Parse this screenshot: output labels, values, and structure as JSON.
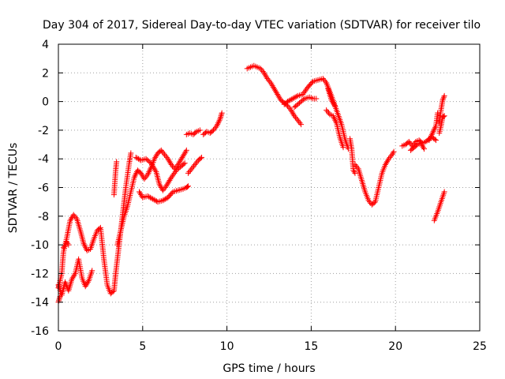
{
  "chart_data": {
    "type": "scatter",
    "title": "Day 304 of 2017, Sidereal Day-to-day VTEC variation (SDTVAR) for receiver tilo",
    "xlabel": "GPS time / hours",
    "ylabel": "SDTVAR / TECUs",
    "xlim": [
      0,
      25
    ],
    "ylim": [
      -16,
      4
    ],
    "xticks": [
      0,
      5,
      10,
      15,
      20,
      25
    ],
    "yticks": [
      -16,
      -14,
      -12,
      -10,
      -8,
      -6,
      -4,
      -2,
      0,
      2,
      4
    ],
    "grid": true,
    "marker": "+",
    "color": "#ff0000",
    "series": [
      {
        "segments": [
          [
            [
              0.0,
              -13.0
            ],
            [
              0.2,
              -12.0
            ],
            [
              0.3,
              -10.5
            ],
            [
              0.5,
              -9.5
            ],
            [
              0.7,
              -8.3
            ],
            [
              0.9,
              -7.9
            ],
            [
              1.1,
              -8.2
            ],
            [
              1.3,
              -9.0
            ],
            [
              1.5,
              -9.9
            ],
            [
              1.7,
              -10.4
            ],
            [
              1.9,
              -10.3
            ],
            [
              2.1,
              -9.6
            ],
            [
              2.3,
              -9.0
            ],
            [
              2.5,
              -8.8
            ],
            [
              2.7,
              -11.0
            ],
            [
              2.9,
              -12.8
            ],
            [
              3.1,
              -13.4
            ],
            [
              3.3,
              -13.2
            ],
            [
              3.4,
              -12.0
            ],
            [
              3.6,
              -10.0
            ],
            [
              3.8,
              -8.0
            ],
            [
              4.0,
              -6.0
            ],
            [
              4.2,
              -4.3
            ],
            [
              4.3,
              -3.6
            ]
          ],
          [
            [
              0.0,
              -12.8
            ],
            [
              0.2,
              -13.5
            ],
            [
              0.4,
              -12.6
            ],
            [
              0.6,
              -13.2
            ],
            [
              0.8,
              -12.4
            ],
            [
              1.0,
              -12.0
            ],
            [
              1.2,
              -11.0
            ],
            [
              1.4,
              -12.3
            ],
            [
              1.6,
              -12.9
            ],
            [
              1.8,
              -12.5
            ],
            [
              2.0,
              -11.8
            ]
          ],
          [
            [
              0.3,
              -10.2
            ],
            [
              0.5,
              -9.8
            ],
            [
              0.6,
              -10.0
            ]
          ],
          [
            [
              0.0,
              -14.0
            ],
            [
              0.1,
              -13.6
            ]
          ],
          [
            [
              3.3,
              -6.5
            ],
            [
              3.4,
              -4.8
            ],
            [
              3.45,
              -4.2
            ]
          ],
          [
            [
              3.5,
              -10.0
            ],
            [
              3.7,
              -9.0
            ],
            [
              3.9,
              -8.0
            ],
            [
              4.1,
              -7.3
            ],
            [
              4.3,
              -6.3
            ],
            [
              4.5,
              -5.3
            ],
            [
              4.7,
              -4.8
            ],
            [
              4.9,
              -5.0
            ],
            [
              5.1,
              -5.4
            ],
            [
              5.3,
              -5.1
            ],
            [
              5.5,
              -4.6
            ],
            [
              5.7,
              -4.0
            ],
            [
              5.9,
              -3.6
            ],
            [
              6.1,
              -3.4
            ],
            [
              6.3,
              -3.7
            ],
            [
              6.5,
              -4.0
            ],
            [
              6.7,
              -4.4
            ],
            [
              6.9,
              -4.7
            ],
            [
              7.1,
              -4.4
            ],
            [
              7.3,
              -4.0
            ],
            [
              7.5,
              -3.6
            ],
            [
              7.6,
              -3.4
            ]
          ],
          [
            [
              4.6,
              -3.9
            ],
            [
              4.9,
              -4.1
            ],
            [
              5.2,
              -4.0
            ],
            [
              5.5,
              -4.3
            ],
            [
              5.8,
              -4.9
            ],
            [
              6.0,
              -5.8
            ],
            [
              6.2,
              -6.2
            ],
            [
              6.4,
              -5.9
            ],
            [
              6.7,
              -5.3
            ],
            [
              7.0,
              -4.8
            ],
            [
              7.3,
              -4.5
            ],
            [
              7.5,
              -4.3
            ]
          ],
          [
            [
              4.8,
              -6.3
            ],
            [
              5.0,
              -6.7
            ],
            [
              5.3,
              -6.6
            ],
            [
              5.6,
              -6.8
            ],
            [
              5.9,
              -7.0
            ],
            [
              6.2,
              -6.9
            ],
            [
              6.5,
              -6.7
            ],
            [
              6.8,
              -6.3
            ],
            [
              7.1,
              -6.2
            ],
            [
              7.4,
              -6.1
            ],
            [
              7.6,
              -6.0
            ],
            [
              7.7,
              -5.9
            ]
          ],
          [
            [
              7.7,
              -5.0
            ],
            [
              7.9,
              -4.7
            ],
            [
              8.1,
              -4.4
            ],
            [
              8.3,
              -4.1
            ],
            [
              8.5,
              -3.9
            ]
          ],
          [
            [
              7.6,
              -2.3
            ],
            [
              7.8,
              -2.2
            ],
            [
              8.0,
              -2.3
            ],
            [
              8.2,
              -2.1
            ],
            [
              8.4,
              -2.0
            ]
          ],
          [
            [
              8.6,
              -2.3
            ],
            [
              8.8,
              -2.1
            ],
            [
              9.0,
              -2.2
            ],
            [
              9.2,
              -2.0
            ],
            [
              9.4,
              -1.7
            ],
            [
              9.6,
              -1.2
            ],
            [
              9.7,
              -0.8
            ]
          ],
          [
            [
              11.2,
              2.3
            ],
            [
              11.4,
              2.4
            ],
            [
              11.6,
              2.5
            ],
            [
              11.8,
              2.4
            ],
            [
              12.0,
              2.3
            ],
            [
              12.2,
              2.0
            ],
            [
              12.4,
              1.6
            ],
            [
              12.6,
              1.3
            ],
            [
              12.8,
              0.9
            ],
            [
              13.0,
              0.5
            ],
            [
              13.2,
              0.1
            ],
            [
              13.4,
              -0.1
            ],
            [
              13.6,
              -0.3
            ],
            [
              13.8,
              -0.6
            ],
            [
              14.0,
              -1.0
            ],
            [
              14.2,
              -1.3
            ],
            [
              14.4,
              -1.6
            ]
          ],
          [
            [
              13.4,
              -0.2
            ],
            [
              13.6,
              0.0
            ],
            [
              13.9,
              0.2
            ],
            [
              14.2,
              0.4
            ],
            [
              14.5,
              0.5
            ],
            [
              14.8,
              1.0
            ],
            [
              15.1,
              1.4
            ],
            [
              15.4,
              1.5
            ],
            [
              15.7,
              1.6
            ],
            [
              15.9,
              1.3
            ]
          ],
          [
            [
              14.0,
              -0.4
            ],
            [
              14.3,
              -0.1
            ],
            [
              14.6,
              0.2
            ],
            [
              14.9,
              0.3
            ],
            [
              15.1,
              0.2
            ],
            [
              15.3,
              0.2
            ]
          ],
          [
            [
              15.9,
              1.3
            ],
            [
              16.2,
              0.4
            ],
            [
              16.5,
              -0.6
            ],
            [
              16.8,
              -1.6
            ],
            [
              17.0,
              -2.6
            ],
            [
              17.2,
              -3.3
            ]
          ],
          [
            [
              16.0,
              0.9
            ],
            [
              16.2,
              0.1
            ],
            [
              16.4,
              -0.3
            ]
          ],
          [
            [
              15.9,
              -0.6
            ],
            [
              16.1,
              -0.9
            ],
            [
              16.3,
              -1.0
            ],
            [
              16.5,
              -1.5
            ],
            [
              16.7,
              -2.5
            ],
            [
              16.9,
              -3.2
            ]
          ],
          [
            [
              17.3,
              -2.6
            ],
            [
              17.4,
              -3.3
            ],
            [
              17.5,
              -4.8
            ],
            [
              17.6,
              -5.0
            ]
          ],
          [
            [
              17.6,
              -4.4
            ],
            [
              17.8,
              -4.7
            ],
            [
              18.0,
              -5.5
            ],
            [
              18.2,
              -6.3
            ],
            [
              18.4,
              -6.9
            ],
            [
              18.6,
              -7.2
            ],
            [
              18.8,
              -7.0
            ],
            [
              19.0,
              -6.0
            ],
            [
              19.2,
              -5.0
            ],
            [
              19.4,
              -4.4
            ],
            [
              19.6,
              -4.0
            ],
            [
              19.8,
              -3.7
            ],
            [
              19.9,
              -3.5
            ]
          ],
          [
            [
              20.4,
              -3.1
            ],
            [
              20.6,
              -3.0
            ],
            [
              20.8,
              -2.8
            ],
            [
              21.0,
              -3.1
            ],
            [
              21.2,
              -2.8
            ],
            [
              21.4,
              -2.7
            ],
            [
              21.6,
              -2.9
            ],
            [
              21.8,
              -2.8
            ],
            [
              22.0,
              -2.6
            ],
            [
              22.2,
              -2.5
            ],
            [
              22.4,
              -2.7
            ]
          ],
          [
            [
              20.9,
              -3.4
            ],
            [
              21.1,
              -3.2
            ],
            [
              21.3,
              -3.0
            ],
            [
              21.5,
              -2.9
            ],
            [
              21.7,
              -3.3
            ]
          ],
          [
            [
              22.0,
              -2.7
            ],
            [
              22.2,
              -2.2
            ],
            [
              22.4,
              -1.7
            ],
            [
              22.5,
              -0.8
            ]
          ],
          [
            [
              22.3,
              -8.3
            ],
            [
              22.5,
              -7.7
            ],
            [
              22.7,
              -7.0
            ],
            [
              22.9,
              -6.3
            ]
          ],
          [
            [
              22.6,
              -1.5
            ],
            [
              22.7,
              -0.6
            ],
            [
              22.8,
              0.1
            ],
            [
              22.9,
              0.4
            ]
          ],
          [
            [
              22.6,
              -2.2
            ],
            [
              22.7,
              -1.7
            ],
            [
              22.8,
              -1.1
            ],
            [
              22.9,
              -1.0
            ]
          ]
        ]
      }
    ]
  }
}
